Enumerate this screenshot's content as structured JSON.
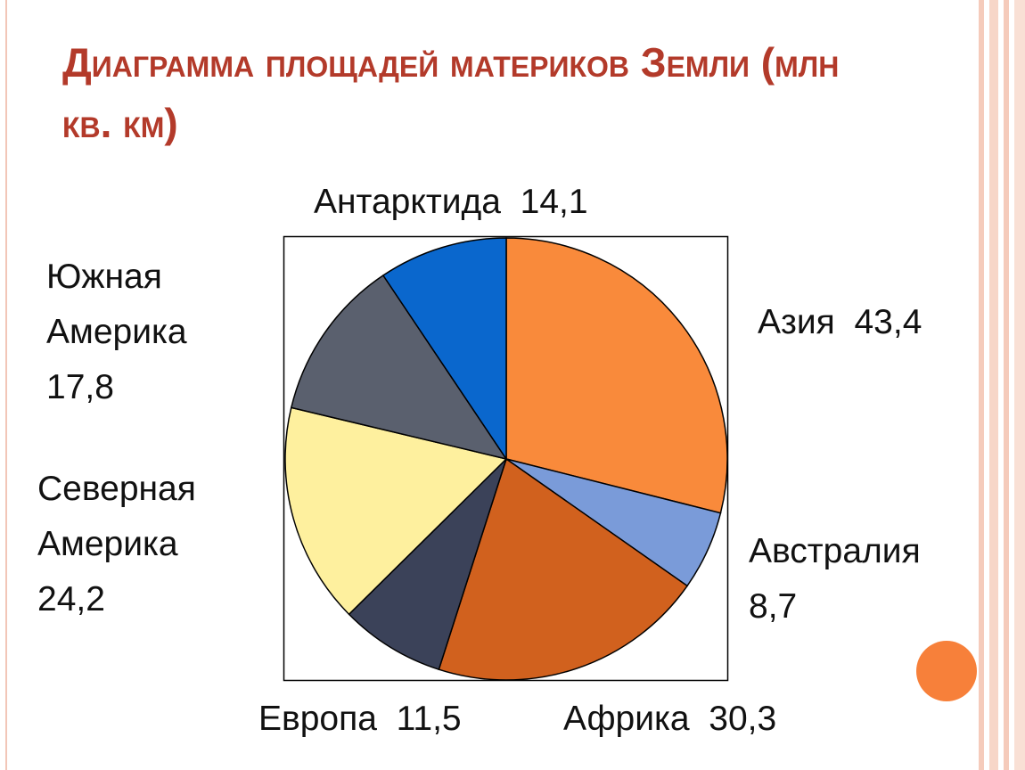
{
  "chart_data": {
    "type": "pie",
    "title": "Диаграмма площадей материков Земли (млн кв. км)",
    "categories": [
      "Азия",
      "Австралия",
      "Африка",
      "Европа",
      "Северная Америка",
      "Южная Америка",
      "Антарктида"
    ],
    "values": [
      43.4,
      8.7,
      30.3,
      11.5,
      24.2,
      17.8,
      14.1
    ],
    "value_labels": [
      "43,4",
      "8,7",
      "30,3",
      "11,5",
      "24,2",
      "17,8",
      "14,1"
    ],
    "colors": [
      "#f98a3b",
      "#7a9bd9",
      "#d1611e",
      "#3b4259",
      "#fef09e",
      "#5a606e",
      "#0a67cd"
    ]
  }
}
